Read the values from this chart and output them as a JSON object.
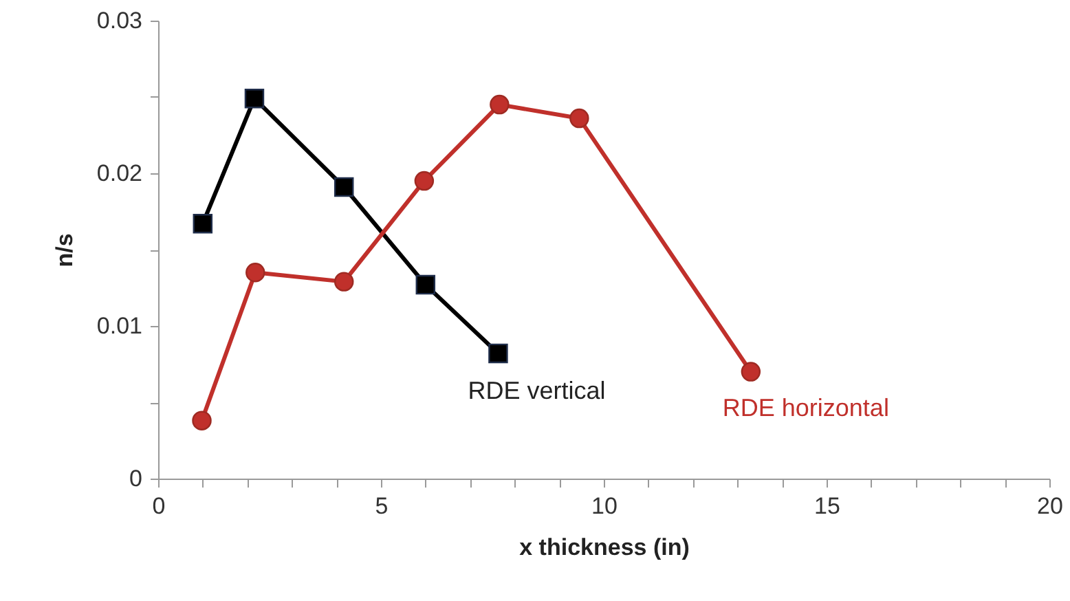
{
  "chart_data": {
    "type": "line",
    "xlabel": "x thickness (in)",
    "ylabel": "n/s",
    "xlim": [
      0,
      20
    ],
    "xticks": [
      0,
      {
        "value": 1,
        "label": null
      },
      {
        "value": 2,
        "label": null
      },
      {
        "value": 3,
        "label": null
      },
      {
        "value": 4,
        "label": null
      },
      5,
      {
        "value": 6,
        "label": null
      },
      {
        "value": 7,
        "label": null
      },
      {
        "value": 8,
        "label": null
      },
      {
        "value": 9,
        "label": null
      },
      10,
      {
        "value": 11,
        "label": null
      },
      {
        "value": 12,
        "label": null
      },
      {
        "value": 13,
        "label": null
      },
      {
        "value": 14,
        "label": null
      },
      15,
      {
        "value": 16,
        "label": null
      },
      {
        "value": 17,
        "label": null
      },
      {
        "value": 18,
        "label": null
      },
      {
        "value": 19,
        "label": null
      },
      20
    ],
    "ylim": [
      0,
      0.03
    ],
    "yticks": [
      0,
      {
        "value": 0.005,
        "label": null
      },
      0.01,
      {
        "value": 0.015,
        "label": null
      },
      0.02,
      {
        "value": 0.025,
        "label": null
      },
      0.03
    ],
    "grid": false,
    "legend": false,
    "line_style": "solid",
    "series": [
      {
        "name": "RDE vertical",
        "color": "#000000",
        "marker": "square",
        "x": [
          1,
          2.16,
          4.17,
          6.0,
          7.63
        ],
        "values": [
          0.0167,
          0.0249,
          0.0191,
          0.0127,
          0.0082
        ]
      },
      {
        "name": "RDE horizontal",
        "color": "#c0302b",
        "marker": "circle",
        "x": [
          0.98,
          2.18,
          4.17,
          5.97,
          7.66,
          9.45,
          13.3
        ],
        "values": [
          0.0038,
          0.0135,
          0.0129,
          0.0195,
          0.0245,
          0.0236,
          0.007
        ]
      }
    ]
  }
}
